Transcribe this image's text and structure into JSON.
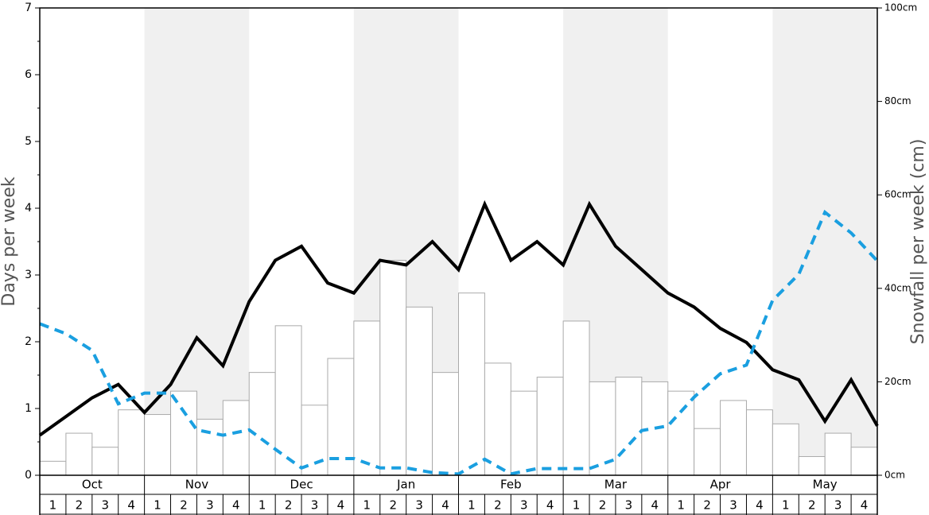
{
  "chart_data": {
    "type": "bar",
    "ylabel": "Days per week",
    "y2label": "Snowfall per week (cm)",
    "ylim": [
      0,
      7
    ],
    "yticks": [
      0,
      1,
      2,
      3,
      4,
      5,
      6,
      7
    ],
    "y2lim": [
      0,
      100
    ],
    "y2ticks": [
      {
        "value": 0,
        "label": "0cm"
      },
      {
        "value": 20,
        "label": "20cm"
      },
      {
        "value": 40,
        "label": "40cm"
      },
      {
        "value": 60,
        "label": "60cm"
      },
      {
        "value": 80,
        "label": "80cm"
      },
      {
        "value": 100,
        "label": "100cm"
      }
    ],
    "xlim": [
      0,
      32
    ],
    "months": [
      "Oct",
      "Nov",
      "Dec",
      "Jan",
      "Feb",
      "Mar",
      "Apr",
      "May"
    ],
    "weeks": [
      "1",
      "2",
      "3",
      "4",
      "1",
      "2",
      "3",
      "4",
      "1",
      "2",
      "3",
      "4",
      "1",
      "2",
      "3",
      "4",
      "1",
      "2",
      "3",
      "4",
      "1",
      "2",
      "3",
      "4",
      "1",
      "2",
      "3",
      "4",
      "1",
      "2",
      "3",
      "4"
    ],
    "bars": {
      "axis": "y2",
      "color": "#ffffff",
      "edge": "#aaaaaa",
      "values": [
        3,
        9,
        6,
        14,
        13,
        18,
        12,
        16,
        22,
        32,
        15,
        25,
        33,
        46,
        36,
        22,
        39,
        24,
        18,
        21,
        33,
        20,
        21,
        20,
        18,
        10,
        16,
        14,
        11,
        4,
        9,
        6
      ]
    },
    "series": [
      {
        "color": "#000000",
        "dashed": false,
        "x": [
          0,
          1,
          2,
          3,
          4,
          5,
          6,
          7,
          8,
          9,
          10,
          11,
          12,
          13,
          14,
          15,
          16,
          17,
          18,
          19,
          20,
          21,
          22,
          23,
          24,
          25,
          26,
          27,
          28,
          29,
          30,
          31,
          32
        ],
        "values": [
          0.6,
          0.88,
          1.16,
          1.36,
          0.94,
          1.36,
          2.06,
          1.64,
          2.6,
          3.22,
          3.43,
          2.88,
          2.73,
          3.22,
          3.15,
          3.5,
          3.08,
          4.06,
          3.22,
          3.5,
          3.15,
          4.06,
          3.43,
          3.08,
          2.73,
          2.52,
          2.2,
          1.99,
          1.58,
          1.43,
          0.81,
          1.43,
          0.74
        ]
      },
      {
        "color": "#1a9fe0",
        "dashed": true,
        "x": [
          0,
          1,
          2,
          3,
          4,
          5,
          6,
          7,
          8,
          9,
          10,
          11,
          12,
          13,
          14,
          15,
          16,
          17,
          18,
          19,
          20,
          21,
          22,
          23,
          24,
          25,
          26,
          27,
          28,
          29,
          30,
          31,
          32
        ],
        "values": [
          2.27,
          2.12,
          1.87,
          1.07,
          1.23,
          1.23,
          0.68,
          0.6,
          0.68,
          0.39,
          0.11,
          0.25,
          0.25,
          0.11,
          0.11,
          0.04,
          0.02,
          0.24,
          0.02,
          0.1,
          0.1,
          0.1,
          0.24,
          0.67,
          0.74,
          1.17,
          1.52,
          1.65,
          2.62,
          3.01,
          3.94,
          3.63,
          3.21
        ]
      }
    ]
  }
}
